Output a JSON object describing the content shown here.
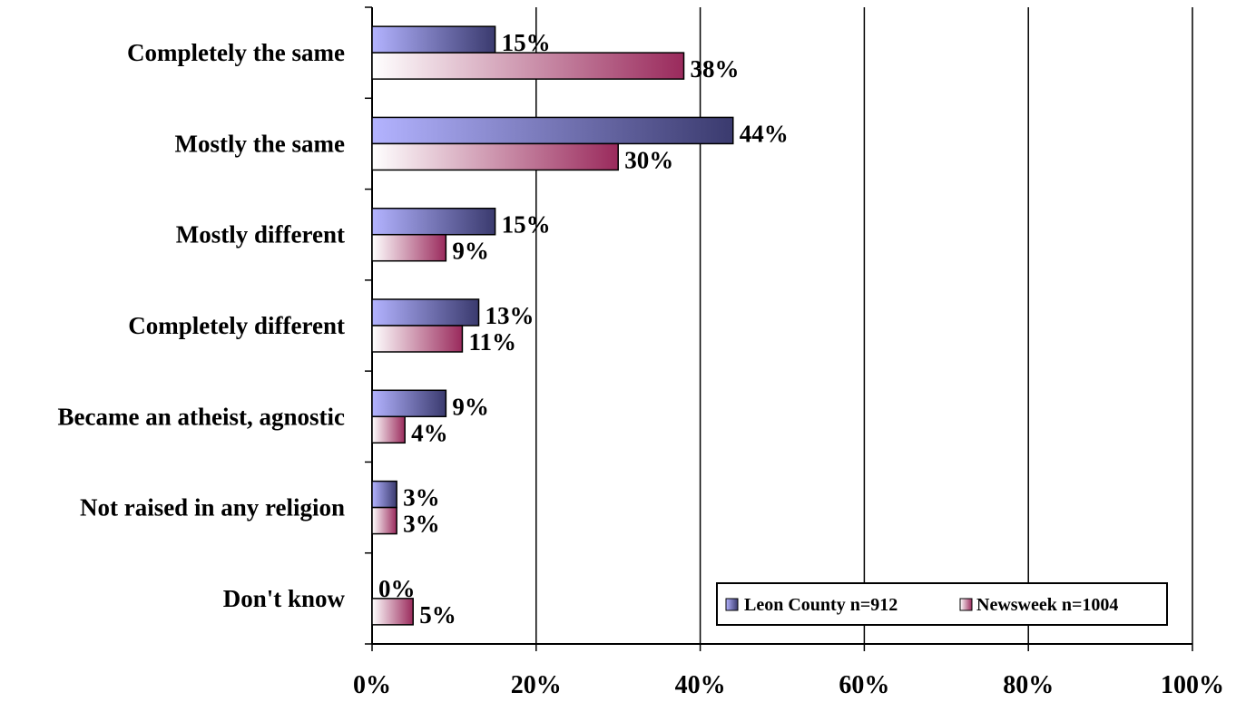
{
  "chart_data": {
    "type": "bar",
    "orientation": "horizontal",
    "categories": [
      "Completely the same",
      "Mostly the same",
      "Mostly different",
      "Completely different",
      "Became an atheist, agnostic",
      "Not raised in any religion",
      "Don't know"
    ],
    "series": [
      {
        "name": "Leon County n=912",
        "values": [
          15,
          44,
          15,
          13,
          9,
          3,
          0
        ],
        "color": "#4a4a8a"
      },
      {
        "name": "Newsweek n=1004",
        "values": [
          38,
          30,
          9,
          11,
          4,
          3,
          5
        ],
        "color": "#a8336a"
      }
    ],
    "value_labels": [
      [
        "15%",
        "44%",
        "15%",
        "13%",
        "9%",
        "3%",
        "0%"
      ],
      [
        "38%",
        "30%",
        "9%",
        "11%",
        "4%",
        "3%",
        "5%"
      ]
    ],
    "xticks": [
      "0%",
      "20%",
      "40%",
      "60%",
      "80%",
      "100%"
    ],
    "xlim": [
      0,
      100
    ],
    "grid": true,
    "legend_position": "bottom-right"
  }
}
